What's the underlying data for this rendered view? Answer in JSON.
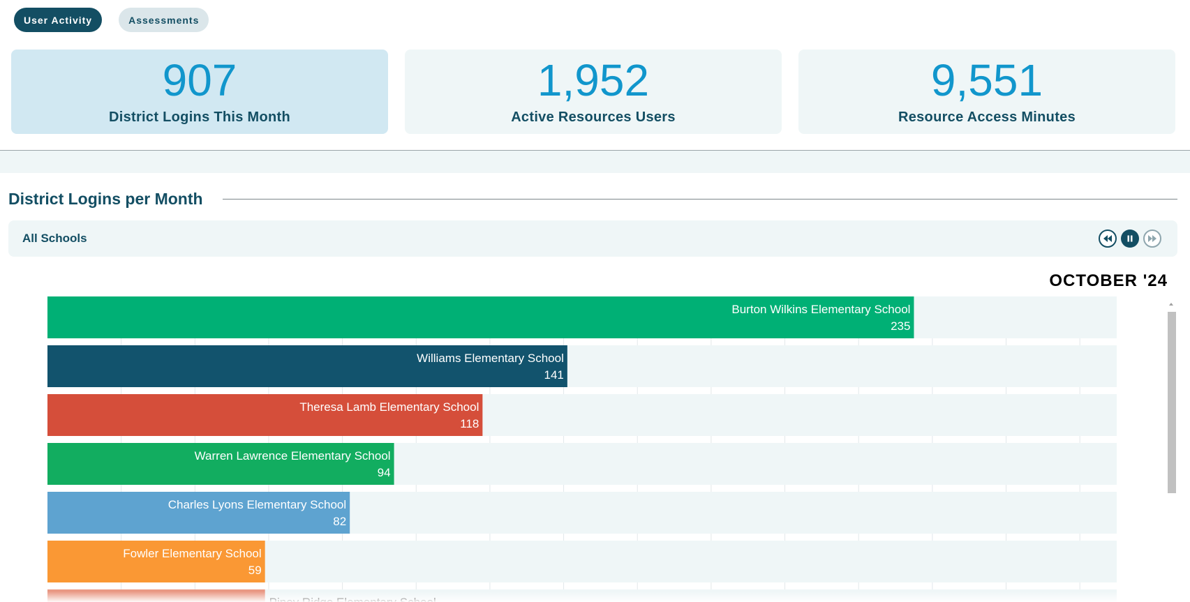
{
  "tabs": [
    {
      "label": "User Activity",
      "active": true
    },
    {
      "label": "Assessments",
      "active": false
    }
  ],
  "stats": [
    {
      "value": "907",
      "label": "District Logins This Month",
      "selected": true
    },
    {
      "value": "1,952",
      "label": "Active Resources Users",
      "selected": false
    },
    {
      "value": "9,551",
      "label": "Resource Access Minutes",
      "selected": false
    }
  ],
  "section": {
    "title": "District Logins per Month"
  },
  "filter": {
    "label": "All Schools"
  },
  "controls": {
    "rewind_icon": "rewind-icon",
    "pause_icon": "pause-icon",
    "forward_icon": "fast-forward-icon"
  },
  "chart_data": {
    "type": "bar",
    "orientation": "horizontal",
    "period": "OCTOBER '24",
    "xlim": [
      0,
      290
    ],
    "grid": true,
    "bars": [
      {
        "label": "Burton Wilkins Elementary School",
        "value": 235,
        "display": "235",
        "color": "#00b075"
      },
      {
        "label": "Williams Elementary School",
        "value": 141,
        "display": "141",
        "color": "#12536d"
      },
      {
        "label": "Theresa Lamb Elementary School",
        "value": 118,
        "display": "118",
        "color": "#d54e3a"
      },
      {
        "label": "Warren Lawrence Elementary School",
        "value": 94,
        "display": "94",
        "color": "#12ad60"
      },
      {
        "label": "Charles Lyons Elementary School",
        "value": 82,
        "display": "82",
        "color": "#5ea3d0"
      },
      {
        "label": "Fowler Elementary School",
        "value": 59,
        "display": "59",
        "color": "#fa9834"
      },
      {
        "label": "Piney Ridge Elementary School",
        "value": 59,
        "display": "",
        "color": "#e99884"
      }
    ]
  },
  "colors": {
    "primary": "#134e63",
    "accent": "#1196cc",
    "track": "#eff6f7"
  }
}
